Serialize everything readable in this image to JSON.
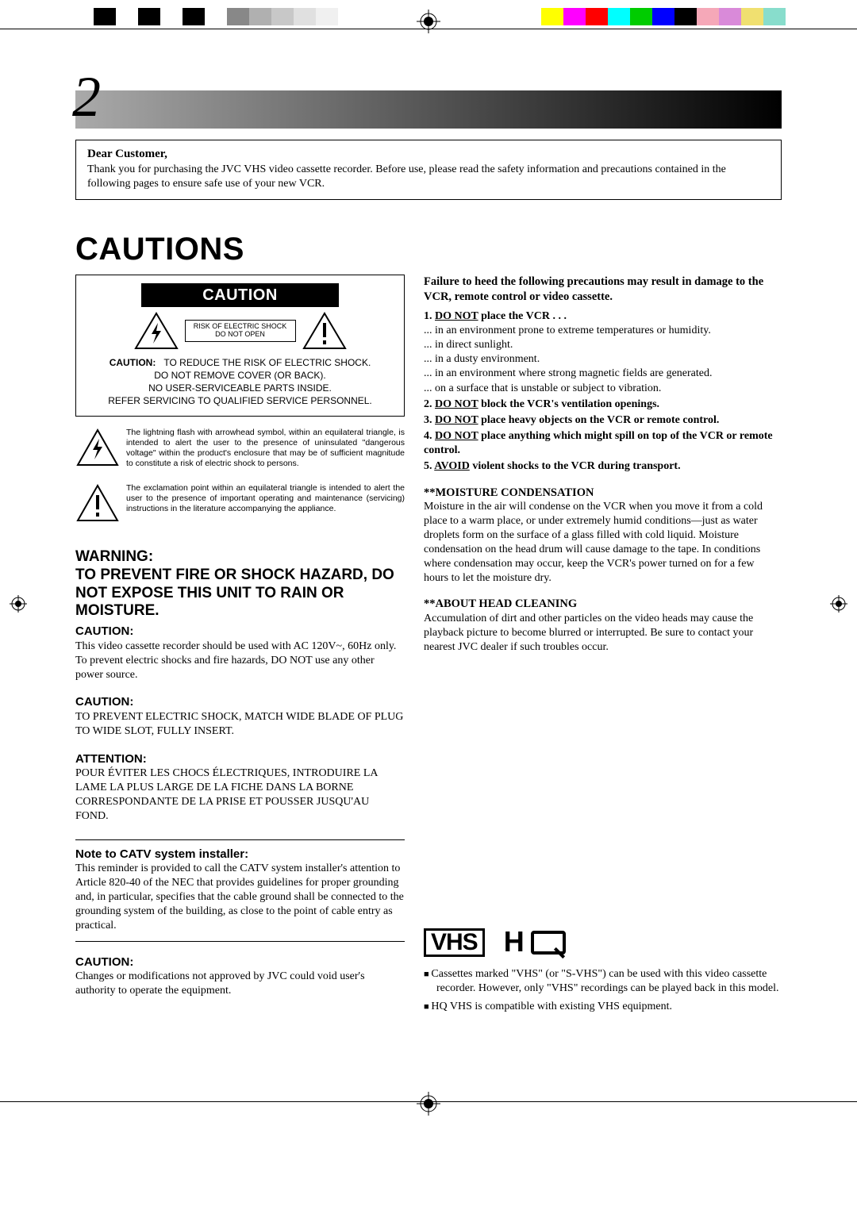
{
  "page_number": "2",
  "crop_colors_left": [
    "#ffffff",
    "#000000",
    "#ffffff",
    "#000000",
    "#ffffff",
    "#000000",
    "#ffffff",
    "#888888",
    "#b0b0b0",
    "#c8c8c8",
    "#e0e0e0",
    "#f0f0f0"
  ],
  "crop_colors_right": [
    "#ffffff",
    "#ffff00",
    "#ff00ff",
    "#ff0000",
    "#00ffff",
    "#00cc00",
    "#0000ff",
    "#000000",
    "#f5a8b8",
    "#d98ad9",
    "#f0e070",
    "#88ddcc"
  ],
  "dear": {
    "title": "Dear Customer,",
    "body": "Thank you for purchasing the JVC VHS video cassette recorder. Before use, please read the safety information and precautions contained in the following pages to ensure safe use of your new VCR."
  },
  "cautions_title": "CAUTIONS",
  "caution_box": {
    "bar": "CAUTION",
    "mini_l1": "RISK OF ELECTRIC SHOCK",
    "mini_l2": "DO NOT OPEN",
    "lbl": "CAUTION:",
    "l1": "TO REDUCE THE RISK OF ELECTRIC SHOCK.",
    "l2": "DO NOT REMOVE COVER (OR BACK).",
    "l3": "NO USER-SERVICEABLE PARTS INSIDE.",
    "l4": "REFER SERVICING TO QUALIFIED SERVICE PERSONNEL."
  },
  "expl_bolt": "The lightning flash with arrowhead symbol, within an equilateral triangle, is intended to alert the user to the presence of uninsulated \"dangerous voltage\" within the product's enclosure that may be of sufficient magnitude to constitute a risk of electric shock to persons.",
  "expl_excl": "The exclamation point within an equilateral triangle is intended to alert the user to the presence of important operating and maintenance (servicing) instructions in the literature accompanying the appliance.",
  "warning": {
    "l1": "WARNING:",
    "l2": "TO PREVENT FIRE OR SHOCK HAZARD, DO NOT EXPOSE THIS UNIT TO RAIN OR MOISTURE."
  },
  "c1": {
    "h": "CAUTION:",
    "p1": "This video cassette recorder should be used with AC 120V~, 60Hz only.",
    "p2": "To prevent electric shocks and fire hazards, DO NOT use any other power source."
  },
  "c2": {
    "h": "CAUTION:",
    "p": "TO PREVENT ELECTRIC SHOCK, MATCH WIDE BLADE OF PLUG TO WIDE SLOT, FULLY INSERT."
  },
  "attn": {
    "h": "ATTENTION:",
    "p": "POUR ÉVITER LES CHOCS ÉLECTRIQUES, INTRODUIRE LA LAME LA PLUS LARGE DE LA FICHE DANS LA BORNE CORRESPONDANTE DE LA PRISE ET POUSSER JUSQU'AU FOND."
  },
  "catv": {
    "h": "Note to CATV system installer:",
    "p": "This reminder is provided to call the CATV system installer's attention to Article 820-40 of the NEC that provides guidelines for proper grounding and, in particular, specifies that the cable ground shall be connected to the grounding system of the building, as close to the point of cable entry as practical."
  },
  "c3": {
    "h": "CAUTION:",
    "p": "Changes or modifications not approved by JVC could void user's authority to operate the equipment."
  },
  "right": {
    "lead": "Failure to heed the following precautions may result in damage to the VCR, remote control or video cassette.",
    "n1": {
      "pre": "1. ",
      "u": "DO NOT",
      "post": " place the VCR . . ."
    },
    "n1_sub": [
      "... in an environment prone to extreme temperatures or humidity.",
      "... in direct sunlight.",
      "... in a dusty environment.",
      "... in an environment where strong magnetic fields are generated.",
      "... on a surface that is unstable or subject to vibration."
    ],
    "n2": {
      "pre": "2. ",
      "u": "DO NOT",
      "post": " block the VCR's ventilation openings."
    },
    "n3": {
      "pre": "3. ",
      "u": "DO NOT",
      "post": " place heavy objects on the VCR or remote control."
    },
    "n4": {
      "pre": "4. ",
      "u": "DO NOT",
      "post": " place anything which might spill on top of the VCR or remote control."
    },
    "n5": {
      "pre": "5. ",
      "u": "AVOID",
      "post": " violent shocks to the VCR during transport."
    }
  },
  "moist": {
    "h": "**MOISTURE CONDENSATION",
    "p": "Moisture in the air will condense on the VCR when you move it from a cold place to a warm place, or under extremely humid conditions—just as water droplets form on the surface of a glass filled with cold liquid. Moisture condensation on the head drum will cause damage to the tape. In conditions where condensation may occur, keep the VCR's power turned on for a few hours to let the moisture dry."
  },
  "head": {
    "h": "**ABOUT HEAD CLEANING",
    "p": "Accumulation of dirt and other particles on the video heads may cause the playback picture to become blurred or interrupted. Be sure to contact your nearest JVC dealer if such troubles occur."
  },
  "logos": {
    "vhs": "VHS",
    "hq_h": "H"
  },
  "notes": {
    "b1": "Cassettes marked \"VHS\" (or \"S-VHS\") can be used with this video cassette recorder. However, only \"VHS\" recordings can be played back in this model.",
    "b2": "HQ VHS is compatible with existing VHS equipment."
  }
}
